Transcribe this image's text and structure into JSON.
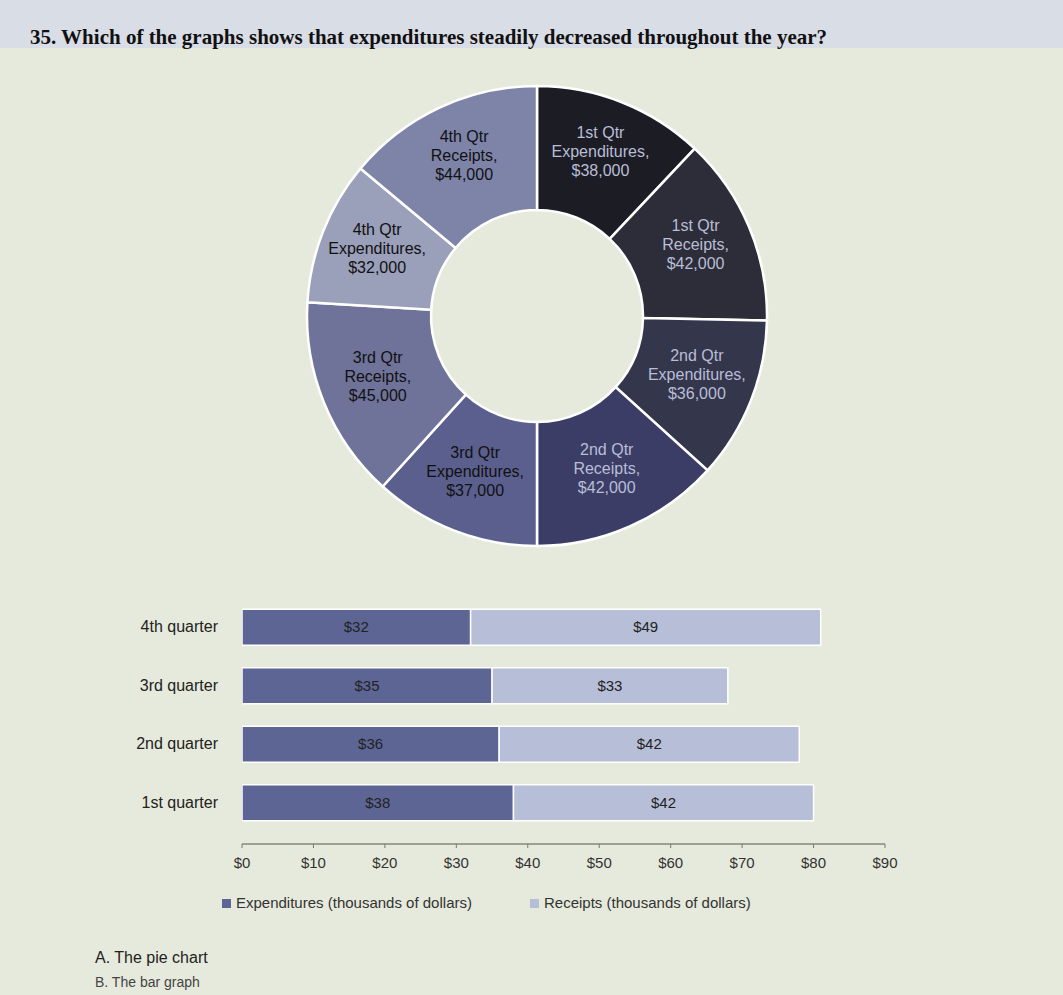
{
  "question": "35. Which of the graphs shows that expenditures steadily decreased throughout the year?",
  "options": [
    "A. The pie chart",
    "B. The bar graph"
  ],
  "chart_data": [
    {
      "type": "donut",
      "categories": [
        "1st Qtr Expenditures,",
        "1st Qtr Receipts,",
        "2nd Qtr Expenditures,",
        "2nd Qtr Receipts,",
        "3rd Qtr Expenditures,",
        "3rd Qtr Receipts,",
        "4th Qtr Expenditures,",
        "4th Qtr Receipts,"
      ],
      "values": [
        38000,
        42000,
        36000,
        42000,
        37000,
        45000,
        32000,
        44000
      ],
      "value_labels": [
        "$38,000",
        "$42,000",
        "$36,000",
        "$42,000",
        "$37,000",
        "$45,000",
        "$32,000",
        "$44,000"
      ],
      "colors": [
        "#1c1c24",
        "#2c2d38",
        "#34364c",
        "#3b3d66",
        "#5b5f8e",
        "#6f7399",
        "#9a9fba",
        "#7e83a8"
      ],
      "data_labels": true
    },
    {
      "type": "bar",
      "orientation": "horizontal",
      "stacked": true,
      "categories": [
        "1st quarter",
        "2nd quarter",
        "3rd quarter",
        "4th quarter"
      ],
      "series": [
        {
          "name": "Expenditures (thousands of dollars)",
          "color": "#5d6594",
          "values": [
            38,
            36,
            35,
            32
          ],
          "value_labels": [
            "$38",
            "$36",
            "$35",
            "$32"
          ]
        },
        {
          "name": "Receipts (thousands of dollars)",
          "color": "#b7bfd8",
          "values": [
            42,
            42,
            33,
            49
          ],
          "value_labels": [
            "$42",
            "$42",
            "$33",
            "$49"
          ]
        }
      ],
      "xlim": [
        0,
        90
      ],
      "xticks": [
        {
          "value": 0,
          "label": "$0"
        },
        {
          "value": 10,
          "label": "$10"
        },
        {
          "value": 20,
          "label": "$20"
        },
        {
          "value": 30,
          "label": "$30"
        },
        {
          "value": 40,
          "label": "$40"
        },
        {
          "value": 50,
          "label": "$50"
        },
        {
          "value": 60,
          "label": "$60"
        },
        {
          "value": 70,
          "label": "$70"
        },
        {
          "value": 80,
          "label": "$80"
        },
        {
          "value": 90,
          "label": "$90"
        }
      ],
      "data_labels": true,
      "legend": "bottom"
    }
  ]
}
